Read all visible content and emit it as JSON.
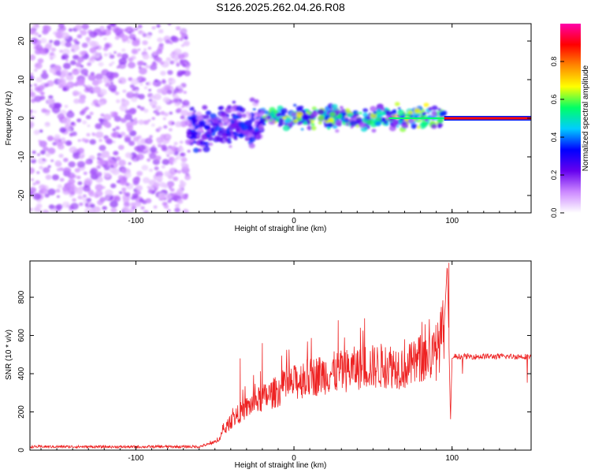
{
  "title": "S126.2025.262.04.26.R08",
  "colors": {
    "snr_line": "#ee2222",
    "spectrogram_background": "#cc88ff",
    "axes": "#000000"
  },
  "chart_data": [
    {
      "type": "heatmap",
      "title": "S126.2025.262.04.26.R08",
      "xlabel": "Height of straight line (km)",
      "ylabel": "Frequency (Hz)",
      "xlim": [
        -167,
        150
      ],
      "ylim": [
        -24.5,
        24.5
      ],
      "x_ticks": [
        -100,
        0,
        100
      ],
      "y_ticks": [
        -20,
        -10,
        0,
        10,
        20
      ],
      "colorbar": {
        "label": "Normalized spectral amplitude",
        "range": [
          0,
          1
        ],
        "ticks": [
          "0.0",
          "0.2",
          "0.4",
          "0.6",
          "0.8"
        ],
        "tick_values": [
          0.0,
          0.2,
          0.4,
          0.6,
          0.8
        ],
        "colormap": [
          "#ffffff",
          "#cc88ff",
          "#6600ee",
          "#0000ff",
          "#00ccff",
          "#00ff66",
          "#ffff00",
          "#ff8800",
          "#ff0000",
          "#ff00aa"
        ]
      },
      "regions": [
        {
          "name": "noise",
          "x_range": [
            -167,
            -67
          ],
          "freq_range": [
            -24.5,
            24.5
          ],
          "amplitude": 0.05
        },
        {
          "name": "onset",
          "x_range": [
            -67,
            -20
          ],
          "freq_range": [
            -12,
            5
          ],
          "amplitude": 0.25
        },
        {
          "name": "signal",
          "x_range": [
            -20,
            95
          ],
          "freq_range": [
            -3,
            3
          ],
          "amplitude": 0.45
        },
        {
          "name": "strong carrier",
          "x_range": [
            95,
            150
          ],
          "freq_range": [
            -0.5,
            0.5
          ],
          "amplitude": 1.0
        }
      ]
    },
    {
      "type": "line",
      "xlabel": "Height of straight line (km)",
      "ylabel": "SNR (10 * v/v)",
      "xlim": [
        -167,
        150
      ],
      "ylim": [
        0,
        990
      ],
      "x_ticks": [
        -100,
        0,
        100
      ],
      "y_ticks": [
        0,
        200,
        400,
        600,
        800
      ],
      "series": [
        {
          "name": "SNR",
          "x": [
            -167,
            -140,
            -110,
            -80,
            -60,
            -50,
            -45,
            -40,
            -35,
            -30,
            -25,
            -20,
            -15,
            -10,
            -5,
            0,
            5,
            10,
            15,
            20,
            25,
            30,
            35,
            40,
            45,
            50,
            55,
            60,
            65,
            70,
            75,
            80,
            85,
            90,
            95,
            97,
            99,
            100,
            103,
            106,
            110,
            115,
            120,
            125,
            130,
            135,
            140,
            145,
            150
          ],
          "values": [
            18,
            18,
            17,
            18,
            18,
            40,
            90,
            150,
            190,
            220,
            250,
            270,
            290,
            310,
            330,
            350,
            370,
            380,
            390,
            400,
            405,
            410,
            420,
            430,
            440,
            435,
            440,
            445,
            440,
            435,
            445,
            480,
            490,
            500,
            650,
            980,
            150,
            480,
            490,
            500,
            480,
            480,
            490,
            490,
            480,
            490,
            490,
            490,
            490
          ],
          "peaks": [
            {
              "x": -34,
              "y": 480
            },
            {
              "x": -20,
              "y": 560
            },
            {
              "x": 28,
              "y": 680
            },
            {
              "x": 42,
              "y": 640
            },
            {
              "x": 70,
              "y": 580
            },
            {
              "x": 98,
              "y": 980
            }
          ]
        }
      ]
    }
  ]
}
